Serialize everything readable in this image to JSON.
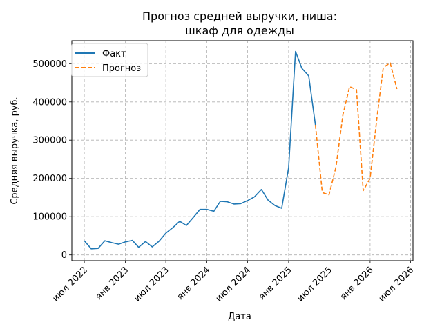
{
  "chart_data": {
    "type": "line",
    "title_line1": "Прогноз средней выручки, ниша:",
    "title_line2": "шкаф для одежды",
    "xlabel": "Дата",
    "ylabel": "Средняя выручка, руб.",
    "x_ticks": [
      {
        "date": "2022-07-01",
        "label": "июл 2022"
      },
      {
        "date": "2023-01-01",
        "label": "янв 2023"
      },
      {
        "date": "2023-07-01",
        "label": "июл 2023"
      },
      {
        "date": "2024-01-01",
        "label": "янв 2024"
      },
      {
        "date": "2024-07-01",
        "label": "июл 2024"
      },
      {
        "date": "2025-01-01",
        "label": "янв 2025"
      },
      {
        "date": "2025-07-01",
        "label": "июл 2025"
      },
      {
        "date": "2026-01-01",
        "label": "янв 2026"
      },
      {
        "date": "2026-07-01",
        "label": "июл 2026"
      }
    ],
    "y_ticks": [
      0,
      100000,
      200000,
      300000,
      400000,
      500000
    ],
    "xlim": [
      "2022-05-06",
      "2026-07-12"
    ],
    "ylim": [
      -15000,
      560000
    ],
    "grid": true,
    "legend_position": "upper-left",
    "series": [
      {
        "name": "Факт",
        "color": "#1f77b4",
        "style": "solid",
        "points": [
          [
            "2022-07-01",
            37000
          ],
          [
            "2022-08-01",
            16000
          ],
          [
            "2022-09-01",
            17000
          ],
          [
            "2022-10-01",
            37000
          ],
          [
            "2022-11-01",
            32000
          ],
          [
            "2022-12-01",
            28000
          ],
          [
            "2023-01-01",
            34000
          ],
          [
            "2023-02-01",
            38000
          ],
          [
            "2023-03-01",
            20000
          ],
          [
            "2023-04-01",
            35000
          ],
          [
            "2023-05-01",
            21000
          ],
          [
            "2023-06-01",
            36000
          ],
          [
            "2023-07-01",
            57000
          ],
          [
            "2023-08-01",
            71000
          ],
          [
            "2023-09-01",
            88000
          ],
          [
            "2023-10-01",
            77000
          ],
          [
            "2023-11-01",
            98000
          ],
          [
            "2023-12-01",
            119000
          ],
          [
            "2024-01-01",
            119000
          ],
          [
            "2024-02-01",
            114000
          ],
          [
            "2024-03-01",
            140000
          ],
          [
            "2024-04-01",
            139000
          ],
          [
            "2024-05-01",
            133000
          ],
          [
            "2024-06-01",
            134000
          ],
          [
            "2024-07-01",
            142000
          ],
          [
            "2024-08-01",
            152000
          ],
          [
            "2024-09-01",
            171000
          ],
          [
            "2024-10-01",
            143000
          ],
          [
            "2024-11-01",
            129000
          ],
          [
            "2024-12-01",
            122000
          ],
          [
            "2025-01-01",
            228000
          ],
          [
            "2025-02-01",
            532000
          ],
          [
            "2025-03-01",
            488000
          ],
          [
            "2025-04-01",
            468000
          ],
          [
            "2025-05-01",
            340000
          ]
        ]
      },
      {
        "name": "Прогноз",
        "color": "#ff7f0e",
        "style": "dashed",
        "points": [
          [
            "2025-05-01",
            340000
          ],
          [
            "2025-06-01",
            163000
          ],
          [
            "2025-07-01",
            157000
          ],
          [
            "2025-08-01",
            230000
          ],
          [
            "2025-09-01",
            366000
          ],
          [
            "2025-10-01",
            440000
          ],
          [
            "2025-11-01",
            432000
          ],
          [
            "2025-12-01",
            168000
          ],
          [
            "2026-01-01",
            200000
          ],
          [
            "2026-02-01",
            360000
          ],
          [
            "2026-03-01",
            490000
          ],
          [
            "2026-04-01",
            502000
          ],
          [
            "2026-05-01",
            434000
          ]
        ]
      }
    ]
  }
}
